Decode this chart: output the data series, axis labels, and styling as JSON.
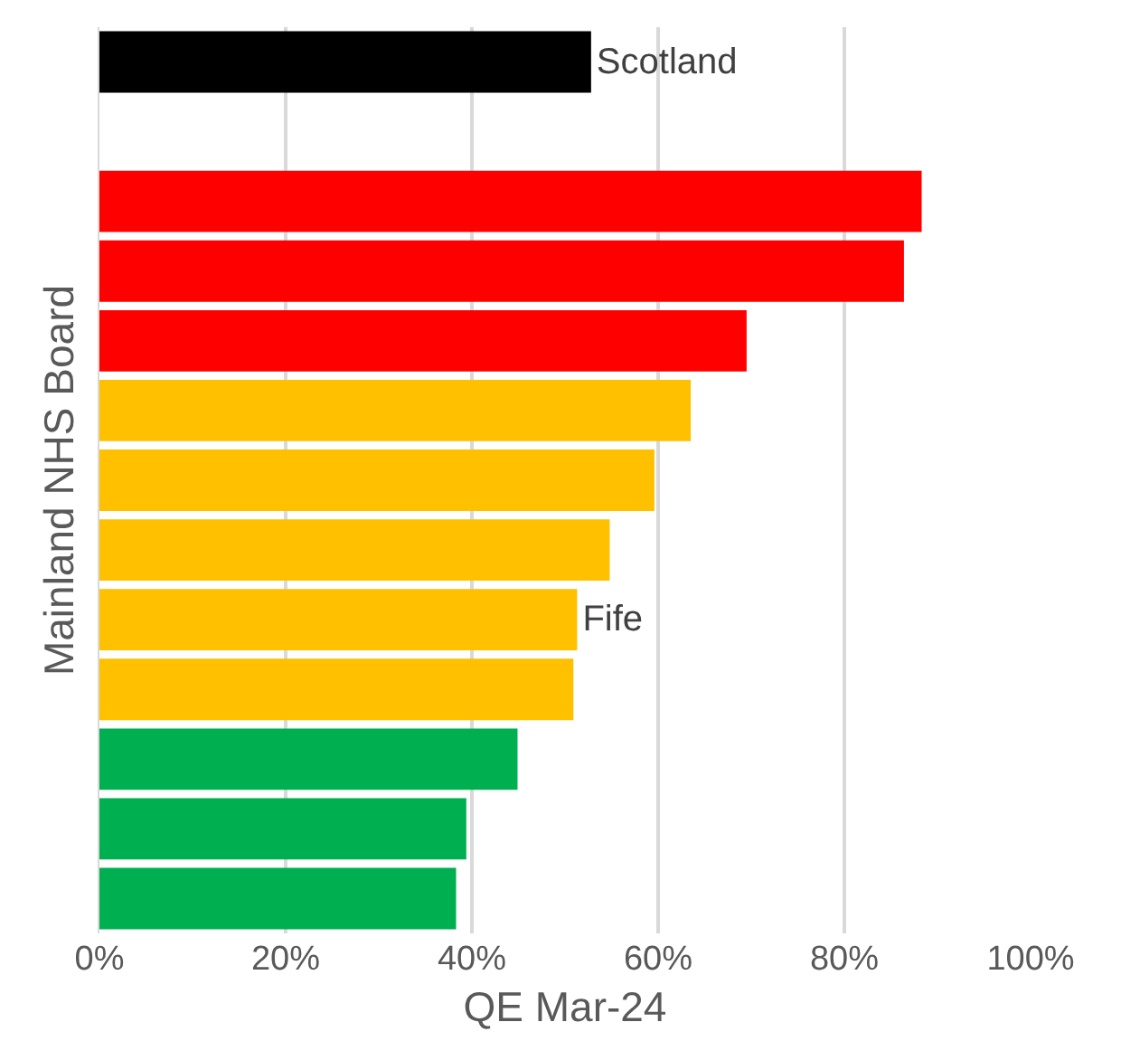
{
  "chart_data": {
    "type": "bar",
    "orientation": "horizontal",
    "xlabel": "QE Mar-24",
    "ylabel": "Mainland NHS Board",
    "categories": [
      "Scotland",
      null,
      null,
      null,
      null,
      null,
      null,
      null,
      "Fife",
      null,
      null,
      null,
      null
    ],
    "values": [
      52.8,
      null,
      88.3,
      86.4,
      69.5,
      63.5,
      59.6,
      54.8,
      51.3,
      50.9,
      44.9,
      39.4,
      38.3
    ],
    "colors": [
      "#000000",
      "#000000",
      "#ff0000",
      "#ff0000",
      "#ff0000",
      "#ffc000",
      "#ffc000",
      "#ffc000",
      "#ffc000",
      "#ffc000",
      "#00b050",
      "#00b050",
      "#00b050"
    ],
    "xlim": [
      0,
      100
    ],
    "xticks": [
      {
        "value": 0,
        "label": "0%"
      },
      {
        "value": 20,
        "label": "20%"
      },
      {
        "value": 40,
        "label": "40%"
      },
      {
        "value": 60,
        "label": "60%"
      },
      {
        "value": 80,
        "label": "80%"
      },
      {
        "value": 100,
        "label": "100%"
      }
    ],
    "grid": "x",
    "tick_labels": "x"
  }
}
